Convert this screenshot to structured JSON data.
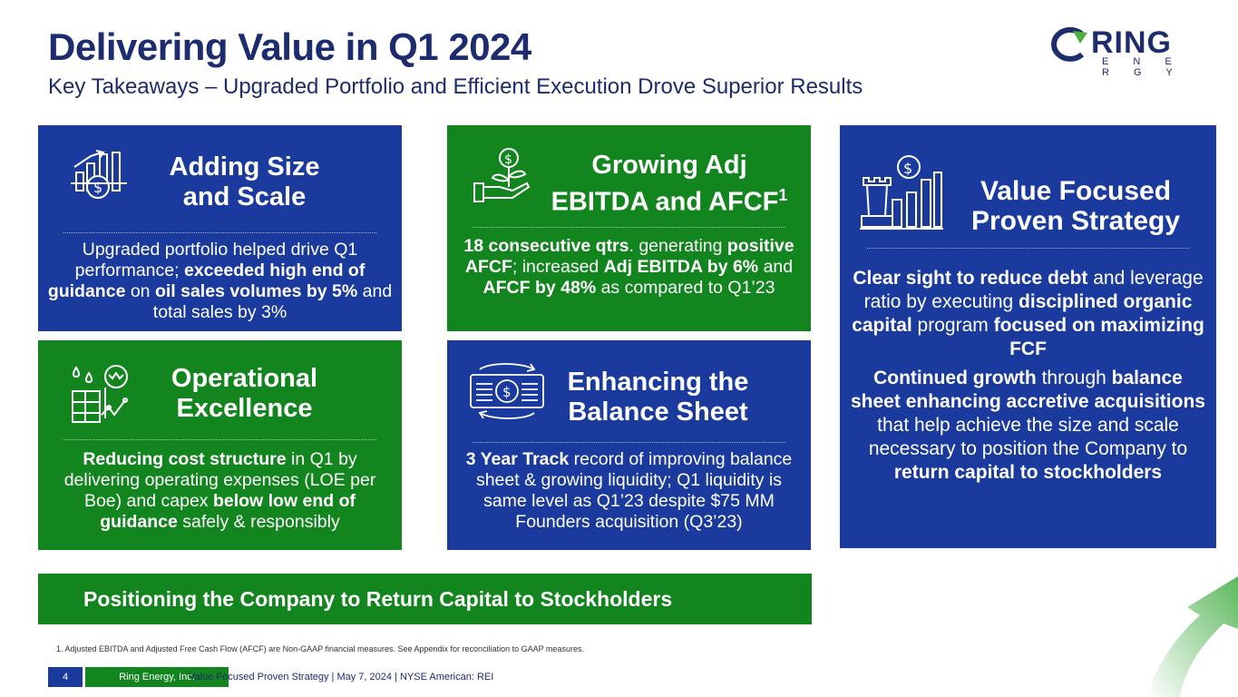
{
  "title": "Delivering Value in Q1 2024",
  "subtitle": "Key Takeaways – Upgraded Portfolio and Efficient Execution Drove Superior Results",
  "logo": {
    "word": "RING",
    "sub": "E N E R G Y"
  },
  "cards": {
    "size": {
      "head1": "Adding Size",
      "head2": "and Scale",
      "body": [
        "Upgraded portfolio helped drive Q1 performance; ",
        "exceeded high end of guidance",
        " on ",
        "oil sales volumes by 5%",
        " and total sales by 3%"
      ]
    },
    "ebitda": {
      "head1": "Growing Adj",
      "head2": "EBITDA and AFCF",
      "sup": "1",
      "body": [
        "18 consecutive qtrs",
        ". generating ",
        "positive AFCF",
        "; increased ",
        "Adj EBITDA by 6%",
        " and ",
        "AFCF by 48%",
        " as compared to Q1’23"
      ]
    },
    "strategy": {
      "head1": "Value Focused",
      "head2": "Proven Strategy",
      "p1": [
        "Clear sight to reduce debt",
        " and leverage ratio by executing ",
        "disciplined organic capital",
        " program ",
        "focused on maximizing FCF"
      ],
      "p2": [
        "Continued growth",
        " through ",
        "balance sheet enhancing accretive acquisitions",
        " that help achieve the size and scale necessary to position the Company to ",
        "return capital to stockholders"
      ]
    },
    "ops": {
      "head1": "Operational",
      "head2": "Excellence",
      "body": [
        "Reducing cost structure",
        " in Q1 by delivering operating expenses (LOE per Boe) and capex ",
        "below low end of guidance",
        " safely & responsibly"
      ]
    },
    "balance": {
      "head1": "Enhancing the",
      "head2": "Balance Sheet",
      "body": [
        "3 Year Track",
        " record of improving balance sheet & growing liquidity; Q1 liquidity is same level as Q1’23 despite $75 MM Founders acquisition (Q3’23)"
      ]
    }
  },
  "banner": "Positioning the Company to Return Capital to Stockholders",
  "footnote": "1.    Adjusted EBITDA and Adjusted Free Cash Flow (AFCF) are Non-GAAP financial measures. See Appendix for reconciliation to GAAP measures.",
  "footer": {
    "page": "4",
    "company": "Ring Energy, Inc.",
    "text": "Value Focused Proven Strategy  | May 7, 2024 |  NYSE American: REI"
  },
  "colors": {
    "blue": "#1b3a9e",
    "green": "#13851f",
    "navy": "#1d2b6f"
  }
}
